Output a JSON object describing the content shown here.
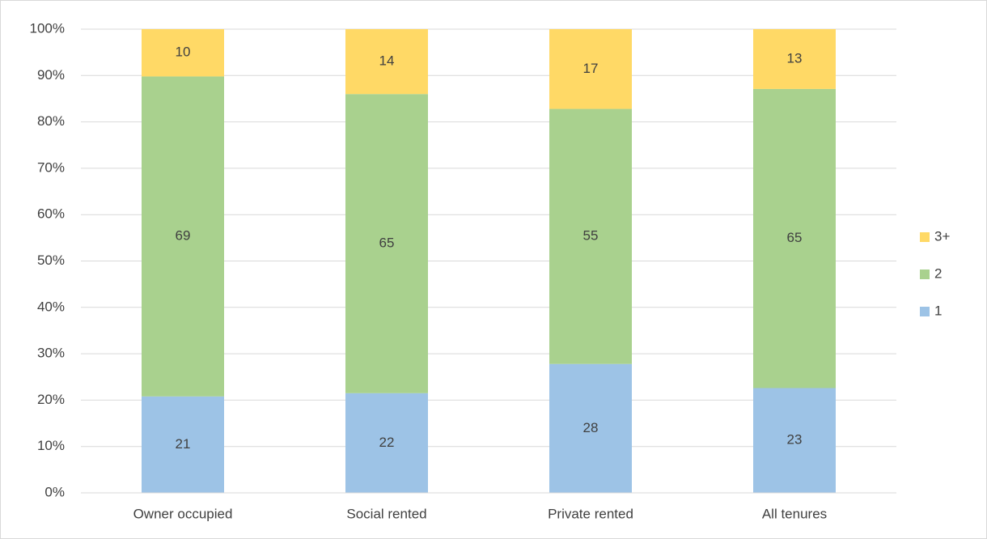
{
  "chart_data": {
    "type": "stacked_bar",
    "categories": [
      "Owner occupied",
      "Social rented",
      "Private rented",
      "All tenures"
    ],
    "series": [
      {
        "name": "1",
        "color": "#9dc3e6",
        "values": [
          20.8,
          21.5,
          27.8,
          22.6
        ],
        "value_labels": [
          "21",
          "22",
          "28",
          "23"
        ]
      },
      {
        "name": "2",
        "color": "#a9d18e",
        "values": [
          69.0,
          64.5,
          55.0,
          64.5
        ],
        "value_labels": [
          "69",
          "65",
          "55",
          "65"
        ]
      },
      {
        "name": "3+",
        "color": "#ffd966",
        "values": [
          10.2,
          14.0,
          17.2,
          12.9
        ],
        "value_labels": [
          "10",
          "14",
          "17",
          "13"
        ]
      }
    ],
    "ylim": [
      0,
      100
    ],
    "yticks": [
      {
        "value": 0,
        "label": "0%"
      },
      {
        "value": 10,
        "label": "10%"
      },
      {
        "value": 20,
        "label": "20%"
      },
      {
        "value": 30,
        "label": "30%"
      },
      {
        "value": 40,
        "label": "40%"
      },
      {
        "value": 50,
        "label": "50%"
      },
      {
        "value": 60,
        "label": "60%"
      },
      {
        "value": 70,
        "label": "70%"
      },
      {
        "value": 80,
        "label": "80%"
      },
      {
        "value": 90,
        "label": "90%"
      },
      {
        "value": 100,
        "label": "100%"
      }
    ],
    "grid": true,
    "legend": "right"
  }
}
